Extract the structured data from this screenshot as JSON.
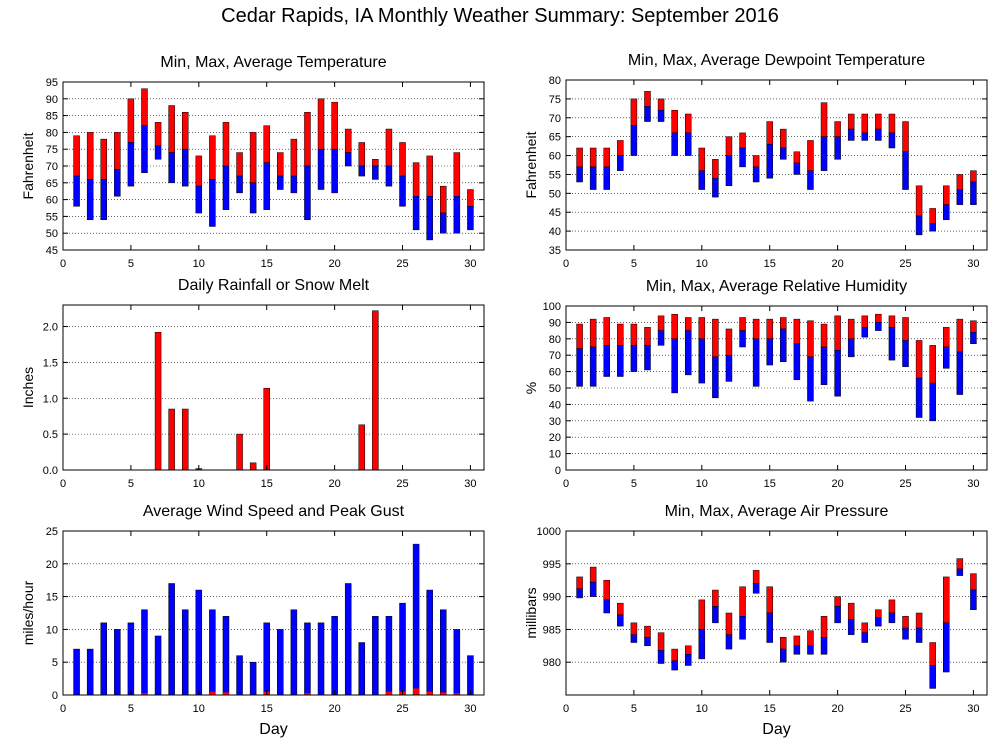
{
  "page": {
    "title": "Cedar Rapids, IA Monthly Weather Summary: September 2016"
  },
  "colors": {
    "red": "#ff0000",
    "blue": "#0000ff",
    "outline": "#000000"
  },
  "chart_data": [
    {
      "id": "temp",
      "type": "bar",
      "style": "range",
      "title": "Min, Max, Average Temperature",
      "xlabel": "",
      "ylabel": "Fahrenheit",
      "xlim": [
        0,
        31
      ],
      "ylim": [
        45,
        95
      ],
      "xticks": [
        0,
        5,
        10,
        15,
        20,
        25,
        30
      ],
      "yticks": [
        45,
        50,
        55,
        60,
        65,
        70,
        75,
        80,
        85,
        90,
        95
      ],
      "grid": true,
      "x": [
        1,
        2,
        3,
        4,
        5,
        6,
        7,
        8,
        9,
        10,
        11,
        12,
        13,
        14,
        15,
        16,
        17,
        18,
        19,
        20,
        21,
        22,
        23,
        24,
        25,
        26,
        27,
        28,
        29,
        30
      ],
      "min": [
        58,
        54,
        54,
        61,
        64,
        68,
        72,
        65,
        64,
        56,
        52,
        57,
        62,
        56,
        57,
        63,
        62,
        54,
        63,
        62,
        70,
        67,
        66,
        64,
        58,
        51,
        48,
        50,
        50,
        51
      ],
      "max": [
        79,
        80,
        78,
        80,
        90,
        93,
        83,
        88,
        86,
        73,
        79,
        83,
        74,
        80,
        82,
        74,
        78,
        86,
        90,
        89,
        81,
        77,
        72,
        81,
        77,
        71,
        73,
        64,
        74,
        63
      ],
      "avg": [
        67,
        66,
        66,
        69,
        77,
        82,
        76,
        74,
        75,
        64,
        66,
        70,
        67,
        65,
        71,
        67,
        67,
        70,
        75,
        75,
        74,
        70,
        70,
        70,
        67,
        61,
        61,
        56,
        61,
        58
      ]
    },
    {
      "id": "dewpoint",
      "type": "bar",
      "style": "range",
      "title": "Min, Max, Average Dewpoint Temperature",
      "xlabel": "",
      "ylabel": "Fahrenheit",
      "xlim": [
        0,
        31
      ],
      "ylim": [
        35,
        80
      ],
      "xticks": [
        0,
        5,
        10,
        15,
        20,
        25,
        30
      ],
      "yticks": [
        35,
        40,
        45,
        50,
        55,
        60,
        65,
        70,
        75,
        80
      ],
      "grid": true,
      "x": [
        1,
        2,
        3,
        4,
        5,
        6,
        7,
        8,
        9,
        10,
        11,
        12,
        13,
        14,
        15,
        16,
        17,
        18,
        19,
        20,
        21,
        22,
        23,
        24,
        25,
        26,
        27,
        28,
        29,
        30
      ],
      "min": [
        53,
        51,
        51,
        56,
        60,
        69,
        69,
        60,
        60,
        51,
        49,
        52,
        57,
        53,
        54,
        59,
        55,
        51,
        56,
        59,
        64,
        64,
        64,
        62,
        51,
        39,
        40,
        43,
        47,
        47
      ],
      "max": [
        62,
        62,
        62,
        64,
        75,
        77,
        75,
        72,
        71,
        62,
        59,
        65,
        66,
        60,
        69,
        67,
        61,
        64,
        74,
        69,
        71,
        71,
        71,
        71,
        69,
        52,
        46,
        52,
        55,
        56
      ],
      "avg": [
        57,
        57,
        57,
        60,
        68,
        73,
        72,
        66,
        66,
        56,
        54,
        60,
        62,
        57,
        63,
        62,
        58,
        56,
        65,
        65,
        67,
        66,
        67,
        66,
        61,
        44,
        42,
        47,
        51,
        53
      ]
    },
    {
      "id": "rain",
      "type": "bar",
      "title": "Daily Rainfall or Snow Melt",
      "xlabel": "",
      "ylabel": "Inches",
      "xlim": [
        0,
        31
      ],
      "ylim": [
        0,
        2.3
      ],
      "xticks": [
        0,
        5,
        10,
        15,
        20,
        25,
        30
      ],
      "yticks": [
        0.0,
        0.5,
        1.0,
        1.5,
        2.0
      ],
      "ytick_labels": [
        "0.0",
        "0.5",
        "1.0",
        "1.5",
        "2.0"
      ],
      "grid": true,
      "x": [
        7,
        8,
        9,
        10,
        13,
        14,
        15,
        22,
        23
      ],
      "values": [
        1.92,
        0.85,
        0.85,
        0.02,
        0.5,
        0.1,
        1.14,
        0.63,
        2.22
      ]
    },
    {
      "id": "humidity",
      "type": "bar",
      "style": "range",
      "title": "Min, Max, Average Relative Humidity",
      "xlabel": "",
      "ylabel": "%",
      "xlim": [
        0,
        31
      ],
      "ylim": [
        0,
        100
      ],
      "xticks": [
        0,
        5,
        10,
        15,
        20,
        25,
        30
      ],
      "yticks": [
        0,
        10,
        20,
        30,
        40,
        50,
        60,
        70,
        80,
        90,
        100
      ],
      "grid": true,
      "x": [
        1,
        2,
        3,
        4,
        5,
        6,
        7,
        8,
        9,
        10,
        11,
        12,
        13,
        14,
        15,
        16,
        17,
        18,
        19,
        20,
        21,
        22,
        23,
        24,
        25,
        26,
        27,
        28,
        29,
        30
      ],
      "min": [
        51,
        51,
        57,
        57,
        60,
        61,
        76,
        47,
        58,
        53,
        44,
        54,
        75,
        51,
        64,
        66,
        55,
        42,
        52,
        45,
        69,
        81,
        85,
        67,
        63,
        32,
        30,
        62,
        46,
        77
      ],
      "max": [
        89,
        92,
        93,
        89,
        89,
        87,
        94,
        95,
        93,
        93,
        92,
        86,
        93,
        92,
        92,
        93,
        92,
        91,
        89,
        94,
        92,
        94,
        95,
        94,
        93,
        79,
        76,
        87,
        92,
        91
      ],
      "avg": [
        74,
        75,
        76,
        76,
        76,
        76,
        85,
        80,
        85,
        80,
        69,
        70,
        85,
        80,
        80,
        86,
        77,
        69,
        75,
        73,
        80,
        87,
        90,
        87,
        79,
        56,
        53,
        75,
        72,
        84
      ]
    },
    {
      "id": "wind",
      "type": "bar",
      "title": "Average Wind Speed and Peak Gust",
      "xlabel": "Day",
      "ylabel": "miles/hour",
      "xlim": [
        0,
        31
      ],
      "ylim": [
        0,
        25
      ],
      "xticks": [
        0,
        5,
        10,
        15,
        20,
        25,
        30
      ],
      "yticks": [
        0,
        5,
        10,
        15,
        20,
        25
      ],
      "grid": true,
      "x": [
        1,
        2,
        3,
        4,
        5,
        6,
        7,
        8,
        9,
        10,
        11,
        12,
        13,
        14,
        15,
        16,
        17,
        18,
        19,
        20,
        21,
        22,
        23,
        24,
        25,
        26,
        27,
        28,
        29,
        30
      ],
      "series": [
        {
          "values": [
            7,
            7,
            11,
            10,
            11,
            13,
            9,
            17,
            13,
            16,
            13,
            12,
            6,
            5,
            11,
            10,
            13,
            11,
            11,
            12,
            17,
            8,
            12,
            12,
            14,
            23,
            16,
            13,
            10,
            6
          ]
        },
        {
          "values": [
            0,
            0,
            0,
            0,
            0,
            0.3,
            0,
            0,
            0,
            0,
            0.5,
            0.4,
            0,
            0,
            0.5,
            0,
            0,
            0.3,
            0,
            0,
            0,
            0,
            0,
            0.5,
            0.5,
            1.0,
            0.5,
            0.4,
            0.3,
            0
          ]
        }
      ]
    },
    {
      "id": "pressure",
      "type": "bar",
      "style": "range",
      "title": "Min, Max, Average Air Pressure",
      "xlabel": "Day",
      "ylabel": "millibars",
      "xlim": [
        0,
        31
      ],
      "ylim": [
        975,
        1000
      ],
      "xticks": [
        0,
        5,
        10,
        15,
        20,
        25,
        30
      ],
      "yticks": [
        980,
        985,
        990,
        995,
        1000
      ],
      "grid": true,
      "x": [
        1,
        2,
        3,
        4,
        5,
        6,
        7,
        8,
        9,
        10,
        11,
        12,
        13,
        14,
        15,
        16,
        17,
        18,
        19,
        20,
        21,
        22,
        23,
        24,
        25,
        26,
        27,
        28,
        29,
        30
      ],
      "min": [
        989.8,
        990.0,
        987.5,
        985.5,
        983.0,
        982.5,
        979.8,
        978.8,
        979.5,
        980.5,
        986.0,
        982.0,
        983.5,
        990.5,
        983.0,
        980.0,
        981.2,
        981.2,
        981.2,
        986.0,
        984.2,
        983.0,
        985.5,
        986.0,
        983.5,
        983.0,
        976.0,
        978.5,
        993.2,
        988.0
      ],
      "max": [
        993.0,
        994.5,
        992.5,
        989.0,
        986.0,
        985.5,
        984.5,
        982.0,
        982.5,
        989.5,
        991.0,
        987.5,
        991.5,
        994.0,
        991.5,
        983.8,
        984.0,
        984.8,
        987.0,
        990.0,
        989.0,
        986.0,
        988.0,
        989.5,
        987.0,
        987.5,
        983.0,
        993.0,
        995.8,
        993.5
      ],
      "avg": [
        991.2,
        992.2,
        989.5,
        987.2,
        984.2,
        983.8,
        981.8,
        980.2,
        981.2,
        985.0,
        988.5,
        984.2,
        987.0,
        992.0,
        987.5,
        982.0,
        982.5,
        982.5,
        983.8,
        988.5,
        986.5,
        984.5,
        986.8,
        987.5,
        985.2,
        985.2,
        979.5,
        986.0,
        994.2,
        991.0
      ]
    }
  ]
}
